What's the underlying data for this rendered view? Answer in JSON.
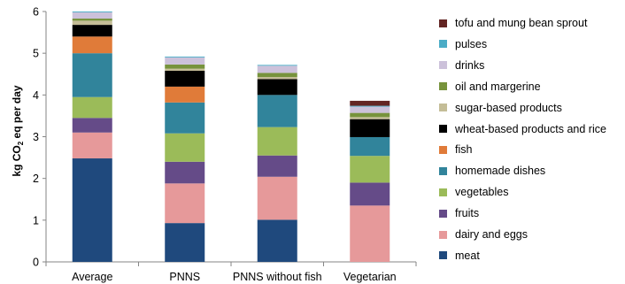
{
  "chart_data": {
    "type": "bar",
    "stacked": true,
    "categories": [
      "Average",
      "PNNS",
      "PNNS without fish",
      "Vegetarian"
    ],
    "ylabel": "kg CO2 eq per day",
    "ylim": [
      0,
      6
    ],
    "yticks": [
      0,
      1,
      2,
      3,
      4,
      5,
      6
    ],
    "grid": false,
    "legend_position": "right",
    "series": [
      {
        "name": "meat",
        "color": "#1f497d",
        "values": [
          2.48,
          0.93,
          1.01,
          0
        ]
      },
      {
        "name": "dairy and eggs",
        "color": "#e6999a",
        "values": [
          0.62,
          0.95,
          1.03,
          1.35
        ]
      },
      {
        "name": "fruits",
        "color": "#654b88",
        "values": [
          0.35,
          0.52,
          0.51,
          0.55
        ]
      },
      {
        "name": "vegetables",
        "color": "#9bbb59",
        "values": [
          0.5,
          0.68,
          0.68,
          0.64
        ]
      },
      {
        "name": "homemade dishes",
        "color": "#31849b",
        "values": [
          1.05,
          0.74,
          0.77,
          0.45
        ]
      },
      {
        "name": "fish",
        "color": "#e07b39",
        "values": [
          0.4,
          0.38,
          0,
          0
        ]
      },
      {
        "name": "wheat-based products and rice",
        "color": "#000000",
        "values": [
          0.28,
          0.38,
          0.38,
          0.43
        ]
      },
      {
        "name": "sugar-based products",
        "color": "#c4bd97",
        "values": [
          0.1,
          0.05,
          0.05,
          0.05
        ]
      },
      {
        "name": "oil and margerine",
        "color": "#77933c",
        "values": [
          0.05,
          0.1,
          0.1,
          0.1
        ]
      },
      {
        "name": "drinks",
        "color": "#ccc1da",
        "values": [
          0.15,
          0.17,
          0.17,
          0.15
        ]
      },
      {
        "name": "pulses",
        "color": "#4bacc6",
        "values": [
          0.02,
          0.02,
          0.02,
          0.02
        ]
      },
      {
        "name": "tofu and mung bean sprout",
        "color": "#632523",
        "values": [
          0,
          0,
          0,
          0.12
        ]
      }
    ]
  }
}
